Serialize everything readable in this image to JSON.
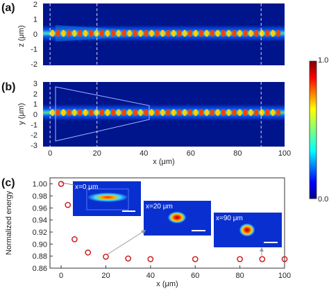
{
  "panel_labels": {
    "a": "(a)",
    "b": "(b)",
    "c": "(c)"
  },
  "colorbar": {
    "max_label": "1.0",
    "min_label": "0.0",
    "colormap": "jet"
  },
  "chart_data": [
    {
      "type": "heatmap",
      "panel": "(a)",
      "xlabel": "",
      "ylabel": "z (μm)",
      "ylim": [
        -2,
        2
      ],
      "yticks": [
        "2",
        "1",
        "0",
        "-1",
        "-2"
      ],
      "xlim": [
        -3,
        100
      ],
      "dashed_lines_x": [
        0,
        20,
        90
      ]
    },
    {
      "type": "heatmap",
      "panel": "(b)",
      "xlabel": "x (μm)",
      "ylabel": "y (μm)",
      "ylim": [
        -3,
        3
      ],
      "yticks": [
        "3",
        "2",
        "1",
        "0",
        "-1",
        "-2",
        "-3"
      ],
      "xticks": [
        "0",
        "20",
        "40",
        "60",
        "80",
        "100"
      ],
      "xlim": [
        -3,
        100
      ],
      "dashed_lines_x": [
        0,
        20,
        90
      ]
    },
    {
      "type": "scatter",
      "panel": "(c)",
      "xlabel": "x (μm)",
      "ylabel": "Normalized energy",
      "xlim": [
        -5,
        100
      ],
      "ylim": [
        0.86,
        1.01
      ],
      "xticks": [
        "0",
        "20",
        "40",
        "60",
        "80",
        "100"
      ],
      "yticks": [
        "1.00",
        "0.98",
        "0.96",
        "0.94",
        "0.92",
        "0.90",
        "0.88",
        "0.86"
      ],
      "marker_color": "#cc1f1f",
      "x": [
        0,
        3,
        6,
        12,
        20,
        30,
        40,
        60,
        80,
        90,
        100
      ],
      "y": [
        1.0,
        0.965,
        0.908,
        0.886,
        0.879,
        0.876,
        0.875,
        0.875,
        0.875,
        0.875,
        0.875
      ],
      "insets": [
        {
          "label": "x=0 μm",
          "points_to_x": 0
        },
        {
          "label": "x=20 μm",
          "points_to_x": 20
        },
        {
          "label": "x=90 μm",
          "points_to_x": 90
        }
      ]
    }
  ]
}
